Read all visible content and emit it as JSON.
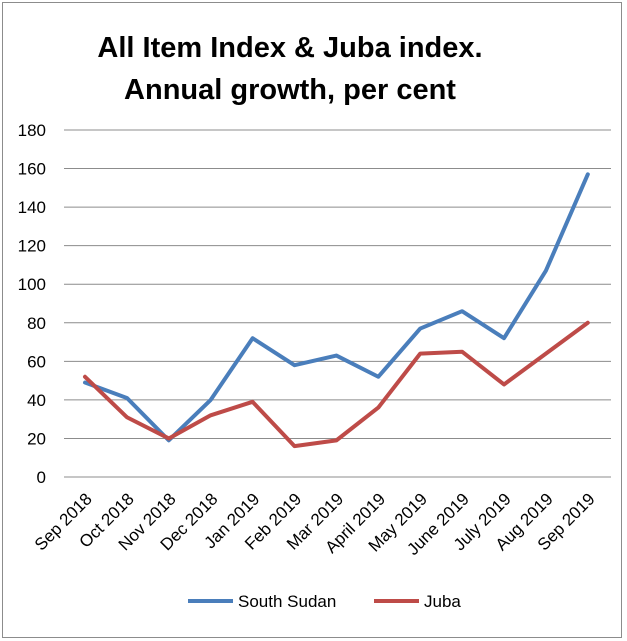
{
  "chart_data": {
    "type": "line",
    "title": [
      "All Item Index & Juba index.",
      "Annual growth, per cent"
    ],
    "categories": [
      "Sep 2018",
      "Oct 2018",
      "Nov 2018",
      "Dec 2018",
      "Jan 2019",
      "Feb 2019",
      "Mar 2019",
      "April 2019",
      "May 2019",
      "June 2019",
      "July 2019",
      "Aug 2019",
      "Sep 2019"
    ],
    "series": [
      {
        "name": "South Sudan",
        "color": "#4a7ebb",
        "values": [
          49,
          41,
          19,
          40,
          72,
          58,
          63,
          52,
          77,
          86,
          72,
          107,
          157
        ]
      },
      {
        "name": "Juba",
        "color": "#be4b48",
        "values": [
          52,
          31,
          20,
          32,
          39,
          16,
          19,
          36,
          64,
          65,
          48,
          64,
          80
        ]
      }
    ],
    "yticks": [
      "0",
      "20",
      "40",
      "60",
      "80",
      "100",
      "120",
      "140",
      "160",
      "180"
    ],
    "ylim": [
      0,
      180
    ],
    "grid": true,
    "legend": "bottom",
    "xlabel": "",
    "ylabel": ""
  }
}
